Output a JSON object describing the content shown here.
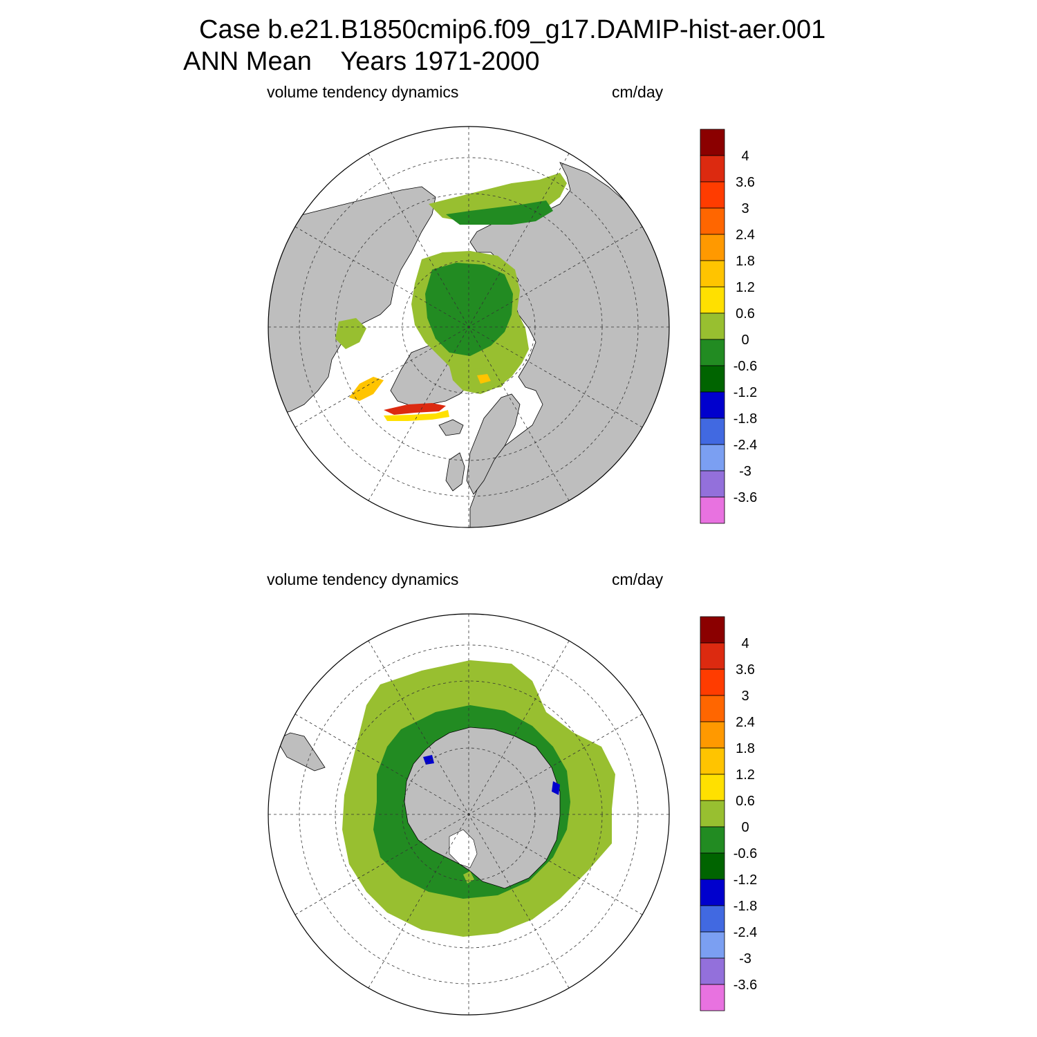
{
  "title": {
    "line1": "Case b.e21.B1850cmip6.f09_g17.DAMIP-hist-aer.001",
    "line2": "ANN Mean    Years 1971-2000"
  },
  "colors": {
    "land": "#bebebe",
    "ocean": "#ffffff",
    "graticule": "#333333"
  },
  "colorbar": {
    "levels": [
      "4",
      "3.6",
      "3",
      "2.4",
      "1.8",
      "1.2",
      "0.6",
      "0",
      "-0.6",
      "-1.2",
      "-1.8",
      "-2.4",
      "-3",
      "-3.6"
    ],
    "colors": [
      "#8b0000",
      "#dc2a10",
      "#ff3c00",
      "#ff6600",
      "#ff9900",
      "#ffc400",
      "#ffe000",
      "#98bf30",
      "#228b22",
      "#006400",
      "#0000cd",
      "#4169e1",
      "#7b9ff2",
      "#9370db",
      "#e872e0"
    ]
  },
  "panels": [
    {
      "id": "north",
      "left_label": "volume tendency dynamics",
      "right_label": "cm/day"
    },
    {
      "id": "south",
      "left_label": "volume tendency dynamics",
      "right_label": "cm/day"
    }
  ]
}
